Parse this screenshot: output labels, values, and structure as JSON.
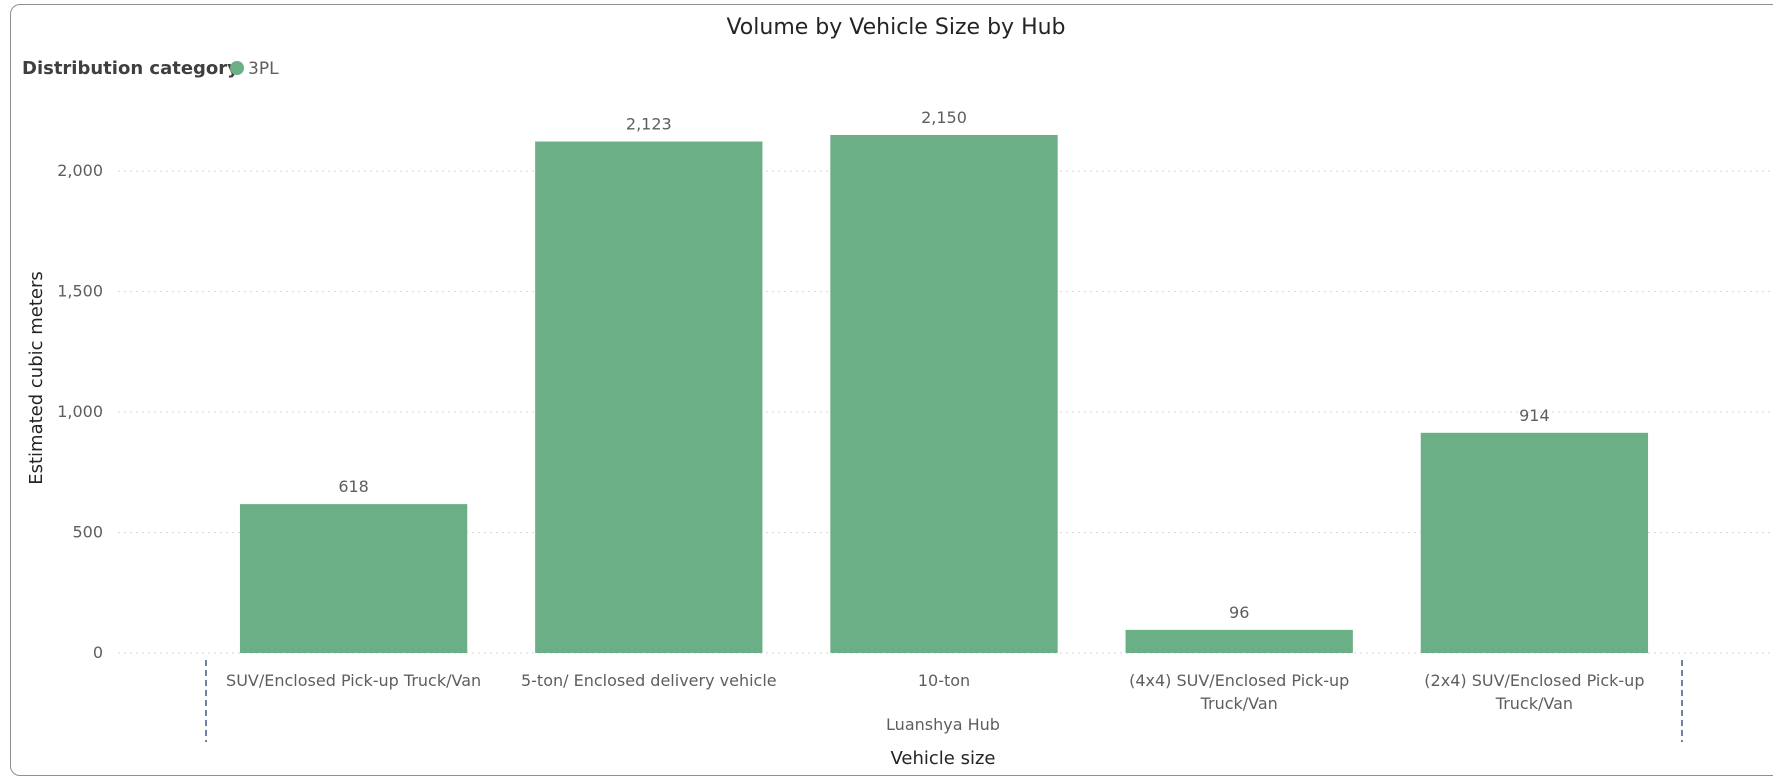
{
  "chart_data": {
    "type": "bar",
    "title": "Volume by Vehicle Size by Hub",
    "legend": {
      "title": "Distribution category",
      "placement": "top-left",
      "entries": [
        {
          "name": "3PL",
          "color": "#6baf86"
        }
      ]
    },
    "xlabel": "Vehicle size",
    "ylabel": "Estimated cubic meters",
    "group_label": "Luanshya Hub",
    "categories": [
      [
        "SUV/Enclosed Pick-up Truck/Van"
      ],
      [
        "5-ton/ Enclosed delivery vehicle"
      ],
      [
        "10-ton"
      ],
      [
        "(4x4) SUV/Enclosed Pick-up",
        "Truck/Van"
      ],
      [
        "(2x4) SUV/Enclosed Pick-up",
        "Truck/Van"
      ]
    ],
    "series": [
      {
        "name": "3PL",
        "values": [
          618,
          2123,
          2150,
          96,
          914
        ],
        "labels": [
          "618",
          "2,123",
          "2,150",
          "96",
          "914"
        ]
      }
    ],
    "yticks": [
      0,
      500,
      1000,
      1500,
      2000
    ],
    "ytick_labels": [
      "0",
      "500",
      "1,000",
      "1,500",
      "2,000"
    ],
    "ylim": [
      0,
      2150
    ],
    "grid": true,
    "colors": {
      "bar": "#6baf86",
      "grid": "#d6d6d6",
      "divider": "#3b5a8a"
    }
  }
}
